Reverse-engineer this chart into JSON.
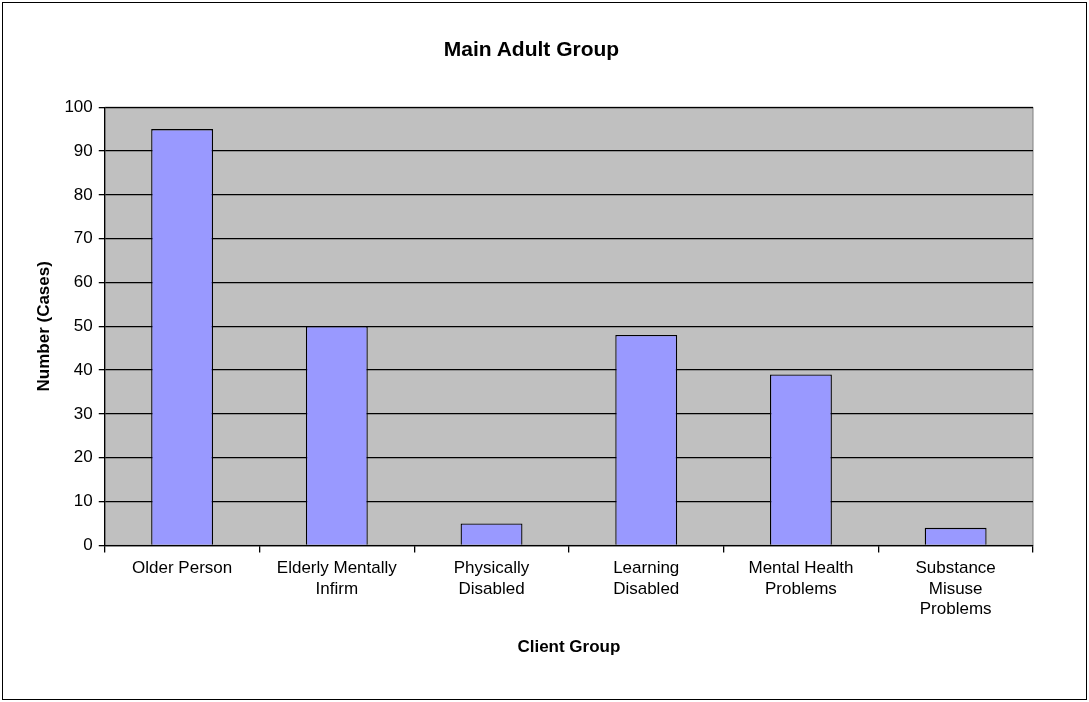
{
  "chart_data": {
    "type": "bar",
    "title": "Main Adult Group",
    "xlabel": "Client Group",
    "ylabel": "Number (Cases)",
    "categories": [
      "Older Person",
      "Elderly Mentally Infirm",
      "Physically Disabled",
      "Learning Disabled",
      "Mental Health Problems",
      "Substance Misuse Problems"
    ],
    "values": [
      95,
      50,
      5,
      48,
      39,
      4
    ],
    "color": "#9999ff",
    "ylim": [
      0,
      100
    ],
    "yticks": [
      0,
      10,
      20,
      30,
      40,
      50,
      60,
      70,
      80,
      90,
      100
    ],
    "grid": "y",
    "legend": false
  }
}
